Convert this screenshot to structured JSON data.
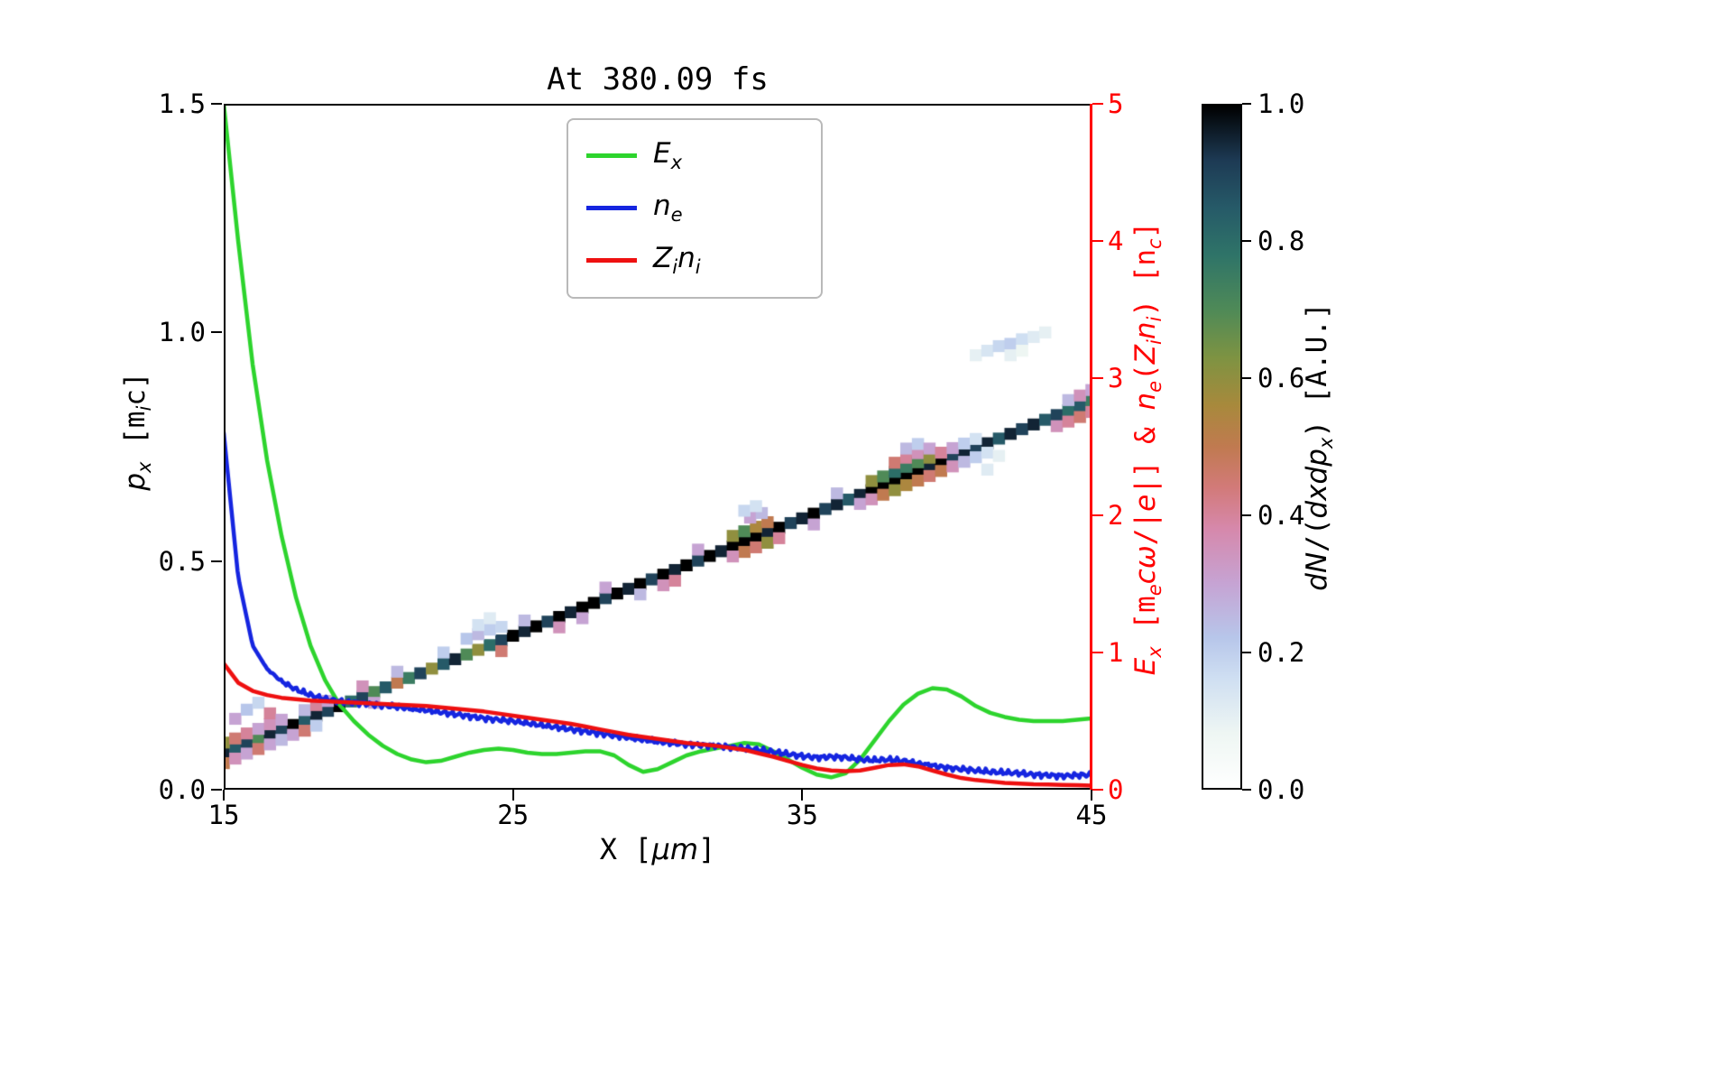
{
  "chart_data": {
    "type": [
      "heatmap",
      "line"
    ],
    "title": "At 380.09 fs",
    "x_axis": {
      "label_plain": "X [um]",
      "min": 15,
      "max": 45,
      "tick_values": [
        15,
        25,
        35,
        45
      ],
      "tick_labels": [
        "15",
        "25",
        "35",
        "45"
      ]
    },
    "y_left": {
      "label_plain": "p_x [m_i c]",
      "min": 0.0,
      "max": 1.5,
      "tick_values": [
        0.0,
        0.5,
        1.0,
        1.5
      ],
      "tick_labels": [
        "0.0",
        "0.5",
        "1.0",
        "1.5"
      ]
    },
    "y_right": {
      "label_plain": "E_x [m_e c w/|e|] & n_e(Z_i n_i) [n_c]",
      "min": 0,
      "max": 5,
      "tick_values": [
        0,
        1,
        2,
        3,
        4,
        5
      ],
      "tick_labels": [
        "0",
        "1",
        "2",
        "3",
        "4",
        "5"
      ],
      "color": "#ff0000"
    },
    "labels": {
      "x": [
        {
          "t": "X ["
        },
        {
          "t": "μm",
          "i": 1
        },
        {
          "t": "]"
        }
      ],
      "y_left": [
        {
          "t": "p",
          "i": 1
        },
        {
          "t": "x",
          "i": 1,
          "s": 1
        },
        {
          "t": " [m"
        },
        {
          "t": "i",
          "i": 1,
          "s": 1
        },
        {
          "t": "c]"
        }
      ],
      "y_right": [
        {
          "t": "E",
          "i": 1
        },
        {
          "t": "x",
          "i": 1,
          "s": 1
        },
        {
          "t": " [m"
        },
        {
          "t": "e",
          "i": 1,
          "s": 1
        },
        {
          "t": "cω",
          "i": 1
        },
        {
          "t": "/|"
        },
        {
          "t": "e",
          "i": 1
        },
        {
          "t": "|] & "
        },
        {
          "t": "n",
          "i": 1
        },
        {
          "t": "e",
          "i": 1,
          "s": 1
        },
        {
          "t": "("
        },
        {
          "t": "Z",
          "i": 1
        },
        {
          "t": "i",
          "i": 1,
          "s": 1
        },
        {
          "t": "n",
          "i": 1
        },
        {
          "t": "i",
          "i": 1,
          "s": 1
        },
        {
          "t": ") [n"
        },
        {
          "t": "c",
          "i": 1,
          "s": 1
        },
        {
          "t": "]"
        }
      ],
      "colorbar": [
        {
          "t": "dN",
          "i": 1
        },
        {
          "t": "/("
        },
        {
          "t": "dxdp",
          "i": 1
        },
        {
          "t": "x",
          "i": 1,
          "s": 1
        },
        {
          "t": ") [A.U.]"
        }
      ]
    },
    "legend": {
      "items": [
        {
          "name": "E_x",
          "parts": [
            {
              "t": "E",
              "i": 1
            },
            {
              "t": "x",
              "i": 1,
              "s": 1
            }
          ],
          "color": "#2dd42d"
        },
        {
          "name": "n_e",
          "parts": [
            {
              "t": "n",
              "i": 1
            },
            {
              "t": "e",
              "i": 1,
              "s": 1
            }
          ],
          "color": "#1525e0"
        },
        {
          "name": "Z_i n_i",
          "parts": [
            {
              "t": "Z",
              "i": 1
            },
            {
              "t": "i",
              "i": 1,
              "s": 1
            },
            {
              "t": "n",
              "i": 1
            },
            {
              "t": "i",
              "i": 1,
              "s": 1
            }
          ],
          "color": "#ee1010"
        }
      ]
    },
    "series": [
      {
        "name": "E_x",
        "axis": "right",
        "color": "#2dd42d",
        "x_start": 15.0,
        "x_step": 0.5,
        "values": [
          5.0,
          4.0,
          3.1,
          2.4,
          1.85,
          1.4,
          1.05,
          0.8,
          0.62,
          0.5,
          0.4,
          0.32,
          0.26,
          0.22,
          0.2,
          0.21,
          0.24,
          0.27,
          0.29,
          0.3,
          0.29,
          0.27,
          0.26,
          0.26,
          0.27,
          0.28,
          0.28,
          0.25,
          0.18,
          0.13,
          0.15,
          0.2,
          0.25,
          0.28,
          0.3,
          0.32,
          0.34,
          0.33,
          0.28,
          0.22,
          0.16,
          0.11,
          0.09,
          0.12,
          0.22,
          0.36,
          0.5,
          0.62,
          0.7,
          0.74,
          0.73,
          0.68,
          0.61,
          0.56,
          0.53,
          0.51,
          0.5,
          0.5,
          0.5,
          0.51,
          0.52
        ]
      },
      {
        "name": "n_e",
        "axis": "right",
        "color": "#1525e0",
        "x_start": 15.0,
        "x_step": 0.5,
        "noise_amplitude": 0.022,
        "values": [
          2.6,
          1.55,
          1.05,
          0.88,
          0.79,
          0.73,
          0.69,
          0.66,
          0.645,
          0.635,
          0.625,
          0.615,
          0.605,
          0.59,
          0.58,
          0.565,
          0.55,
          0.535,
          0.52,
          0.51,
          0.5,
          0.485,
          0.47,
          0.455,
          0.44,
          0.425,
          0.41,
          0.395,
          0.38,
          0.365,
          0.35,
          0.34,
          0.33,
          0.325,
          0.32,
          0.31,
          0.3,
          0.29,
          0.275,
          0.26,
          0.245,
          0.235,
          0.24,
          0.235,
          0.22,
          0.215,
          0.22,
          0.21,
          0.19,
          0.175,
          0.16,
          0.15,
          0.14,
          0.13,
          0.125,
          0.12,
          0.11,
          0.105,
          0.1,
          0.105,
          0.11
        ]
      },
      {
        "name": "Z_i n_i",
        "axis": "right",
        "color": "#ee1010",
        "x_start": 15.0,
        "x_step": 0.5,
        "values": [
          0.92,
          0.78,
          0.72,
          0.69,
          0.67,
          0.66,
          0.65,
          0.645,
          0.64,
          0.635,
          0.63,
          0.625,
          0.62,
          0.615,
          0.61,
          0.6,
          0.59,
          0.58,
          0.57,
          0.555,
          0.54,
          0.525,
          0.51,
          0.495,
          0.48,
          0.46,
          0.44,
          0.42,
          0.4,
          0.385,
          0.37,
          0.355,
          0.34,
          0.33,
          0.32,
          0.305,
          0.29,
          0.265,
          0.24,
          0.21,
          0.18,
          0.155,
          0.14,
          0.135,
          0.14,
          0.16,
          0.18,
          0.185,
          0.17,
          0.14,
          0.11,
          0.085,
          0.07,
          0.06,
          0.05,
          0.045,
          0.04,
          0.038,
          0.035,
          0.033,
          0.03
        ]
      }
    ],
    "heatmap": {
      "x_range": [
        15,
        45
      ],
      "p_range": [
        0.0,
        1.5
      ],
      "cell_size": [
        0.42,
        0.026
      ],
      "colormap_name": "cubehelix_r",
      "colormap_stops": [
        [
          0.0,
          "#ffffff"
        ],
        [
          0.08,
          "#eef6f3"
        ],
        [
          0.16,
          "#cfdff2"
        ],
        [
          0.22,
          "#b7c6ea"
        ],
        [
          0.3,
          "#c6a3d3"
        ],
        [
          0.38,
          "#d688ab"
        ],
        [
          0.44,
          "#d27a79"
        ],
        [
          0.5,
          "#c07a50"
        ],
        [
          0.56,
          "#a8893c"
        ],
        [
          0.63,
          "#7e9342"
        ],
        [
          0.7,
          "#4f8a57"
        ],
        [
          0.78,
          "#2f7468"
        ],
        [
          0.85,
          "#265a68"
        ],
        [
          0.92,
          "#1d3a54"
        ],
        [
          1.0,
          "#000000"
        ]
      ],
      "ridge": {
        "x_start": 15.0,
        "x_step": 0.4,
        "p_start": 0.08,
        "p_step": 0.010267,
        "intensities": [
          0.95,
          0.85,
          0.9,
          0.7,
          0.95,
          0.9,
          1.0,
          0.85,
          0.95,
          0.9,
          1.0,
          0.8,
          0.9,
          0.7,
          0.85,
          0.5,
          0.75,
          0.9,
          0.6,
          0.85,
          0.95,
          0.7,
          0.6,
          0.8,
          0.9,
          1.0,
          0.95,
          1.0,
          0.9,
          1.0,
          0.95,
          1.0,
          1.0,
          0.9,
          1.0,
          0.95,
          1.0,
          0.9,
          1.0,
          0.95,
          1.0,
          0.9,
          1.0,
          0.95,
          1.0,
          1.0,
          1.0,
          0.95,
          1.0,
          0.9,
          0.95,
          1.0,
          0.9,
          0.95,
          0.85,
          0.95,
          1.0,
          1.0,
          1.0,
          1.0,
          1.0,
          0.95,
          1.0,
          0.9,
          0.95,
          0.9,
          0.95,
          0.85,
          0.95,
          0.9,
          0.95,
          0.85,
          0.9,
          0.8,
          0.85,
          0.75
        ]
      },
      "extra_cells": [
        [
          15.0,
          0.058,
          0.5
        ],
        [
          15.0,
          0.103,
          0.6
        ],
        [
          15.4,
          0.068,
          0.35
        ],
        [
          15.4,
          0.112,
          0.45
        ],
        [
          15.4,
          0.155,
          0.3
        ],
        [
          15.8,
          0.079,
          0.3
        ],
        [
          15.8,
          0.123,
          0.4
        ],
        [
          15.8,
          0.175,
          0.22
        ],
        [
          16.2,
          0.089,
          0.45
        ],
        [
          16.2,
          0.133,
          0.3
        ],
        [
          16.2,
          0.19,
          0.18
        ],
        [
          16.6,
          0.099,
          0.3
        ],
        [
          16.6,
          0.143,
          0.35
        ],
        [
          16.6,
          0.167,
          0.4
        ],
        [
          17.0,
          0.109,
          0.25
        ],
        [
          17.0,
          0.153,
          0.3
        ],
        [
          17.4,
          0.12,
          0.3
        ],
        [
          17.8,
          0.129,
          0.45
        ],
        [
          17.8,
          0.174,
          0.25
        ],
        [
          18.2,
          0.14,
          0.2
        ],
        [
          18.2,
          0.185,
          0.4
        ],
        [
          18.6,
          0.194,
          0.3
        ],
        [
          19.8,
          0.226,
          0.35
        ],
        [
          20.2,
          0.19,
          0.3
        ],
        [
          21.0,
          0.258,
          0.25
        ],
        [
          22.6,
          0.3,
          0.2
        ],
        [
          23.4,
          0.33,
          0.22
        ],
        [
          23.8,
          0.34,
          0.25
        ],
        [
          24.2,
          0.35,
          0.2
        ],
        [
          24.6,
          0.356,
          0.18
        ],
        [
          23.8,
          0.36,
          0.15
        ],
        [
          24.2,
          0.375,
          0.12
        ],
        [
          24.6,
          0.303,
          0.45
        ],
        [
          25.4,
          0.37,
          0.25
        ],
        [
          26.6,
          0.355,
          0.35
        ],
        [
          27.4,
          0.375,
          0.3
        ],
        [
          28.2,
          0.442,
          0.3
        ],
        [
          29.4,
          0.427,
          0.25
        ],
        [
          30.2,
          0.447,
          0.35
        ],
        [
          30.6,
          0.457,
          0.4
        ],
        [
          31.4,
          0.525,
          0.3
        ],
        [
          32.6,
          0.555,
          0.6
        ],
        [
          33.0,
          0.565,
          0.7
        ],
        [
          33.4,
          0.575,
          0.55
        ],
        [
          33.0,
          0.52,
          0.5
        ],
        [
          33.4,
          0.53,
          0.45
        ],
        [
          33.8,
          0.585,
          0.5
        ],
        [
          32.6,
          0.51,
          0.35
        ],
        [
          33.8,
          0.54,
          0.6
        ],
        [
          34.2,
          0.55,
          0.4
        ],
        [
          33.2,
          0.595,
          0.3
        ],
        [
          33.6,
          0.605,
          0.25
        ],
        [
          33.0,
          0.61,
          0.18
        ],
        [
          33.4,
          0.62,
          0.15
        ],
        [
          35.4,
          0.58,
          0.3
        ],
        [
          36.2,
          0.648,
          0.25
        ],
        [
          37.0,
          0.625,
          0.3
        ],
        [
          37.4,
          0.635,
          0.35
        ],
        [
          37.4,
          0.675,
          0.6
        ],
        [
          37.8,
          0.645,
          0.5
        ],
        [
          37.8,
          0.685,
          0.7
        ],
        [
          38.2,
          0.655,
          0.6
        ],
        [
          38.2,
          0.695,
          0.8
        ],
        [
          38.2,
          0.715,
          0.45
        ],
        [
          38.6,
          0.666,
          0.55
        ],
        [
          38.6,
          0.706,
          0.75
        ],
        [
          38.6,
          0.726,
          0.4
        ],
        [
          38.6,
          0.746,
          0.25
        ],
        [
          39.0,
          0.676,
          0.5
        ],
        [
          39.0,
          0.716,
          0.7
        ],
        [
          39.0,
          0.736,
          0.35
        ],
        [
          39.0,
          0.756,
          0.2
        ],
        [
          39.4,
          0.686,
          0.45
        ],
        [
          39.4,
          0.726,
          0.6
        ],
        [
          39.4,
          0.746,
          0.3
        ],
        [
          39.8,
          0.697,
          0.5
        ],
        [
          39.8,
          0.737,
          0.4
        ],
        [
          40.2,
          0.707,
          0.35
        ],
        [
          40.2,
          0.747,
          0.3
        ],
        [
          40.6,
          0.717,
          0.25
        ],
        [
          40.6,
          0.757,
          0.2
        ],
        [
          41.0,
          0.727,
          0.2
        ],
        [
          41.0,
          0.767,
          0.15
        ],
        [
          41.4,
          0.737,
          0.15
        ],
        [
          41.4,
          0.7,
          0.12
        ],
        [
          41.8,
          0.73,
          0.1
        ],
        [
          41.0,
          0.95,
          0.1
        ],
        [
          41.4,
          0.96,
          0.14
        ],
        [
          41.8,
          0.97,
          0.18
        ],
        [
          42.2,
          0.975,
          0.2
        ],
        [
          42.2,
          0.95,
          0.1
        ],
        [
          42.6,
          0.985,
          0.16
        ],
        [
          42.6,
          0.96,
          0.08
        ],
        [
          43.0,
          0.99,
          0.12
        ],
        [
          43.4,
          1.0,
          0.1
        ],
        [
          43.8,
          0.795,
          0.35
        ],
        [
          44.2,
          0.805,
          0.4
        ],
        [
          44.2,
          0.852,
          0.25
        ],
        [
          44.6,
          0.815,
          0.45
        ],
        [
          44.6,
          0.862,
          0.35
        ],
        [
          45.0,
          0.826,
          0.4
        ],
        [
          45.0,
          0.874,
          0.3
        ]
      ],
      "colorbar": {
        "label_plain": "dN/(dxdp_x) [A.U.]",
        "tick_values": [
          0.0,
          0.2,
          0.4,
          0.6,
          0.8,
          1.0
        ],
        "tick_labels": [
          "0.0",
          "0.2",
          "0.4",
          "0.6",
          "0.8",
          "1.0"
        ],
        "min": 0.0,
        "max": 1.0
      }
    }
  }
}
